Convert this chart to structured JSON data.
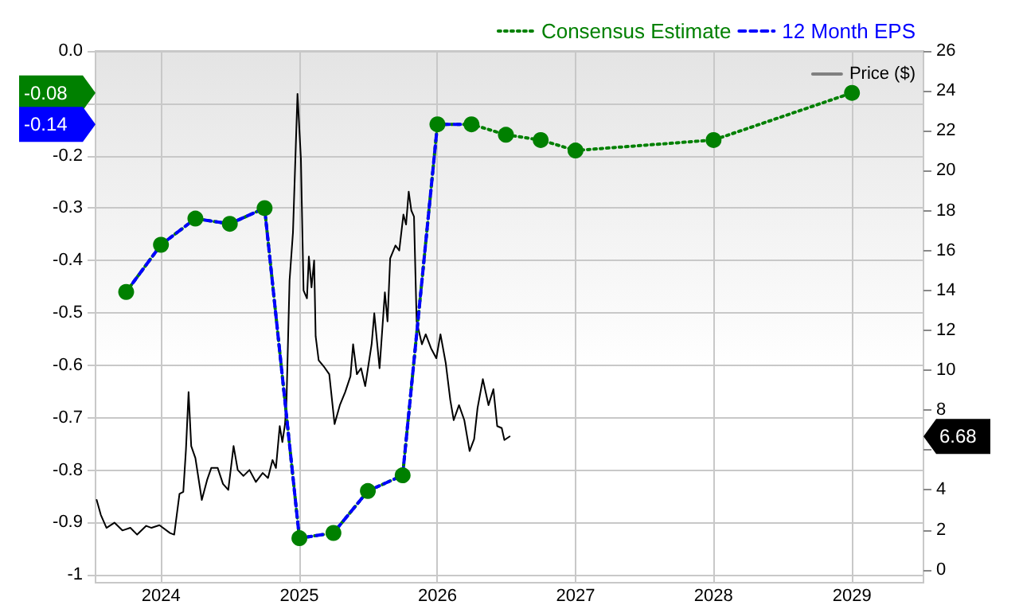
{
  "chart_data": {
    "type": "line",
    "xlim": [
      "2023-07-12",
      "2029-07-09"
    ],
    "xticks": [
      {
        "value": "2024",
        "label": "2024"
      },
      {
        "value": "2025",
        "label": "2025"
      },
      {
        "value": "2026",
        "label": "2026"
      },
      {
        "value": "2027",
        "label": "2027"
      },
      {
        "value": "2028",
        "label": "2028"
      },
      {
        "value": "2029",
        "label": "2029"
      }
    ],
    "ylim": [
      -1.015,
      0
    ],
    "yticks": [
      {
        "value": 0,
        "label": "0.0"
      },
      {
        "value": -0.1,
        "label": null
      },
      -0.2,
      -0.3,
      -0.4,
      -0.5,
      -0.6,
      -0.7,
      -0.8,
      -0.9,
      -1
    ],
    "y2lim": [
      -0.65,
      26
    ],
    "y2ticks": [
      0,
      2,
      4,
      {
        "value": 6,
        "label": null
      },
      8,
      10,
      12,
      14,
      16,
      18,
      20,
      22,
      24,
      26
    ],
    "grid": true,
    "legend": "top right",
    "series": [
      {
        "name": "Consensus Estimate",
        "color": "#008000",
        "line_style": "dotted",
        "marker": "circle",
        "x": [
          "2023-10-01",
          "2024-01-01",
          "2024-04-01",
          "2024-07-01",
          "2024-10-01",
          "2025-01-01",
          "2025-04-01",
          "2025-07-01",
          "2025-10-01",
          "2026-01-01",
          "2026-04-01",
          "2026-07-01",
          "2026-10-01",
          "2027-01-01",
          "2028-01-01",
          "2029-01-01"
        ],
        "values": [
          -0.46,
          -0.37,
          -0.32,
          -0.33,
          -0.3,
          -0.93,
          -0.92,
          -0.84,
          -0.81,
          -0.14,
          -0.14,
          -0.16,
          -0.17,
          -0.19,
          -0.17,
          -0.08
        ]
      },
      {
        "name": "12 Month EPS",
        "color": "#0000ff",
        "line_style": "dashed",
        "marker": "none",
        "x": [
          "2023-10-01",
          "2024-01-01",
          "2024-04-01",
          "2024-07-01",
          "2024-10-01",
          "2025-01-01",
          "2025-04-01",
          "2025-07-01",
          "2025-10-01",
          "2026-01-01",
          "2026-04-01"
        ],
        "values": [
          -0.46,
          -0.37,
          -0.32,
          -0.33,
          -0.3,
          -0.93,
          -0.92,
          -0.84,
          -0.81,
          -0.14,
          -0.14
        ]
      },
      {
        "name": "Price ($)",
        "color": "#000000",
        "line_style": "solid",
        "marker": "none",
        "axis": "y2",
        "x": [
          "2023-07-15",
          "2023-07-26",
          "2023-08-10",
          "2023-08-31",
          "2023-09-21",
          "2023-10-12",
          "2023-10-30",
          "2023-11-23",
          "2023-12-07",
          "2023-12-28",
          "2024-01-25",
          "2024-02-05",
          "2024-02-19",
          "2024-02-29",
          "2024-03-07",
          "2024-03-14",
          "2024-03-21",
          "2024-04-01",
          "2024-04-18",
          "2024-05-02",
          "2024-05-13",
          "2024-05-30",
          "2024-06-13",
          "2024-06-27",
          "2024-07-11",
          "2024-07-22",
          "2024-08-06",
          "2024-08-22",
          "2024-09-08",
          "2024-09-26",
          "2024-10-10",
          "2024-10-22",
          "2024-10-31",
          "2024-11-10",
          "2024-11-17",
          "2024-11-24",
          "2024-11-28",
          "2024-12-06",
          "2024-12-15",
          "2024-12-27",
          "2025-01-05",
          "2025-01-12",
          "2025-01-21",
          "2025-01-26",
          "2025-02-02",
          "2025-02-09",
          "2025-02-13",
          "2025-02-21",
          "2025-03-06",
          "2025-03-21",
          "2025-04-04",
          "2025-04-18",
          "2025-05-02",
          "2025-05-16",
          "2025-05-23",
          "2025-06-02",
          "2025-06-13",
          "2025-06-24",
          "2025-07-11",
          "2025-07-18",
          "2025-08-01",
          "2025-08-15",
          "2025-08-22",
          "2025-08-29",
          "2025-09-12",
          "2025-09-22",
          "2025-10-03",
          "2025-10-10",
          "2025-10-17",
          "2025-10-24",
          "2025-10-31",
          "2025-11-07",
          "2025-11-21",
          "2025-12-01",
          "2025-12-15",
          "2025-12-29",
          "2026-01-09",
          "2026-01-23",
          "2026-02-04",
          "2026-02-13",
          "2026-02-27",
          "2026-03-13",
          "2026-03-27",
          "2026-04-08",
          "2026-04-17",
          "2026-05-01",
          "2026-05-16",
          "2026-05-29",
          "2026-06-08",
          "2026-06-20",
          "2026-06-27",
          "2026-07-11"
        ],
        "values": [
          3.5,
          2.75,
          2.1,
          2.36,
          1.97,
          2.1,
          1.76,
          2.2,
          2.1,
          2.23,
          1.84,
          1.76,
          3.8,
          3.9,
          6.0,
          8.9,
          6.2,
          5.6,
          3.5,
          4.5,
          5.1,
          5.1,
          4.3,
          4.0,
          6.2,
          5.0,
          4.7,
          5.0,
          4.4,
          4.85,
          4.6,
          5.5,
          5.1,
          7.2,
          6.4,
          7.3,
          8.5,
          14.5,
          16.9,
          23.85,
          20.6,
          14.0,
          13.6,
          15.7,
          14.15,
          15.5,
          11.7,
          10.5,
          10.2,
          9.8,
          7.3,
          8.25,
          8.9,
          9.7,
          11.3,
          9.8,
          10.1,
          9.2,
          11.3,
          12.85,
          10.1,
          13.9,
          12.45,
          15.6,
          16.25,
          16.0,
          17.8,
          17.3,
          18.95,
          18.0,
          17.7,
          12.45,
          11.3,
          11.8,
          11.1,
          10.6,
          11.8,
          10.35,
          8.5,
          7.5,
          8.25,
          7.5,
          5.95,
          6.55,
          8.1,
          9.55,
          8.25,
          9.05,
          7.2,
          7.1,
          6.5,
          6.68
        ]
      }
    ],
    "annotations": [
      "-0.08",
      "-0.14",
      "6.68"
    ]
  }
}
